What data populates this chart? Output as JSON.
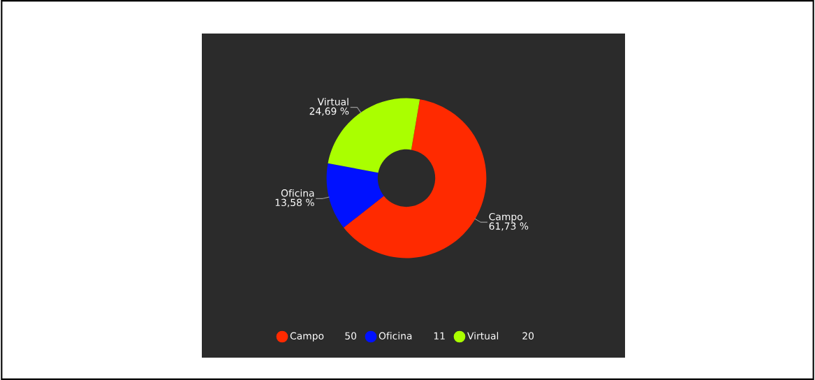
{
  "chart_data": {
    "type": "donut",
    "categories": [
      "Campo",
      "Oficina",
      "Virtual"
    ],
    "values": [
      61.73,
      13.58,
      24.69
    ],
    "annotations": [
      "50",
      "11",
      "20"
    ],
    "colors": [
      "#ff2a00",
      "#0011ff",
      "#aaff00"
    ],
    "value_labels": [
      "61,73 %",
      "13,58 %",
      "24,69 %"
    ],
    "legend": "bottom"
  }
}
